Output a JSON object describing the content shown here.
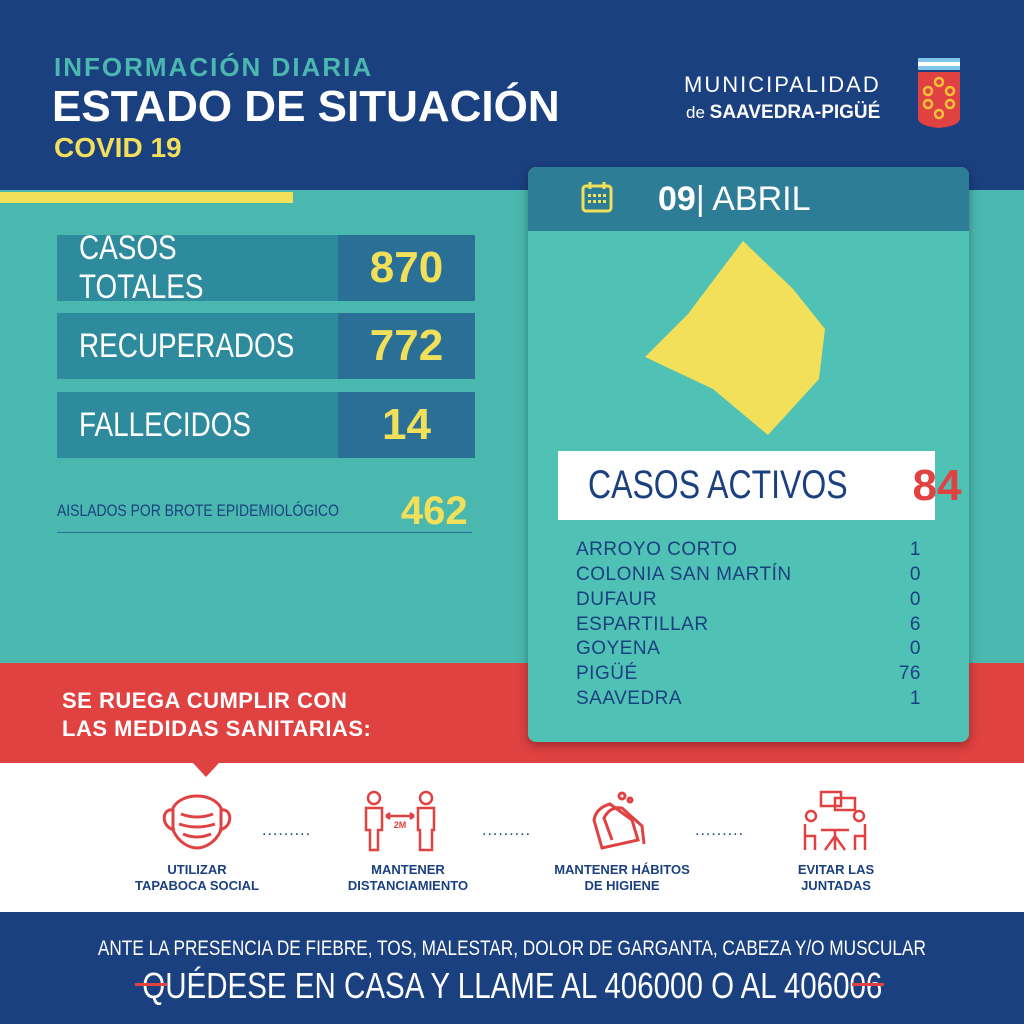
{
  "header": {
    "subtitle": "INFORMACIÓN DIARIA",
    "title": "ESTADO DE SITUACIÓN",
    "tag": "COVID 19"
  },
  "logo": {
    "line1": "MUNICIPALIDAD",
    "prefix": "de",
    "line2": "SAAVEDRA-PIGÜÉ"
  },
  "stats": [
    {
      "label": "CASOS TOTALES",
      "value": "870"
    },
    {
      "label": "RECUPERADOS",
      "value": "772"
    },
    {
      "label": "FALLECIDOS",
      "value": "14"
    }
  ],
  "aislados": {
    "label": "AISLADOS POR BROTE EPIDEMIOLÓGICO",
    "value": "462"
  },
  "card": {
    "day": "09",
    "month": "ABRIL",
    "activos_label": "CASOS ACTIVOS",
    "activos_value": "84",
    "localities": [
      {
        "name": "ARROYO CORTO",
        "value": "1"
      },
      {
        "name": "COLONIA SAN MARTÍN",
        "value": "0"
      },
      {
        "name": "DUFAUR",
        "value": "0"
      },
      {
        "name": "ESPARTILLAR",
        "value": "6"
      },
      {
        "name": "GOYENA",
        "value": "0"
      },
      {
        "name": "PIGÜÉ",
        "value": "76"
      },
      {
        "name": "SAAVEDRA",
        "value": "1"
      }
    ]
  },
  "notice": {
    "line1": "SE RUEGA CUMPLIR CON",
    "line2": "LAS MEDIDAS SANITARIAS:"
  },
  "measures": [
    {
      "l1": "UTILIZAR",
      "l2": "TAPABOCA SOCIAL",
      "icon": "mask-icon"
    },
    {
      "l1": "MANTENER",
      "l2": "DISTANCIAMIENTO",
      "icon": "distance-icon",
      "badge": "2M"
    },
    {
      "l1": "MANTENER HÁBITOS",
      "l2": "DE HIGIENE",
      "icon": "handwash-icon"
    },
    {
      "l1": "EVITAR LAS",
      "l2": "JUNTADAS",
      "icon": "gathering-icon"
    }
  ],
  "footer": {
    "line1": "ANTE LA PRESENCIA DE FIEBRE, TOS, MALESTAR, DOLOR DE GARGANTA, CABEZA Y/O MUSCULAR",
    "line2": "QUÉDESE EN CASA Y LLAME AL 406000 O AL 406006"
  },
  "colors": {
    "navy": "#1b4080",
    "teal": "#4bb8b0",
    "yellow": "#f2e05a",
    "red": "#e04141"
  }
}
